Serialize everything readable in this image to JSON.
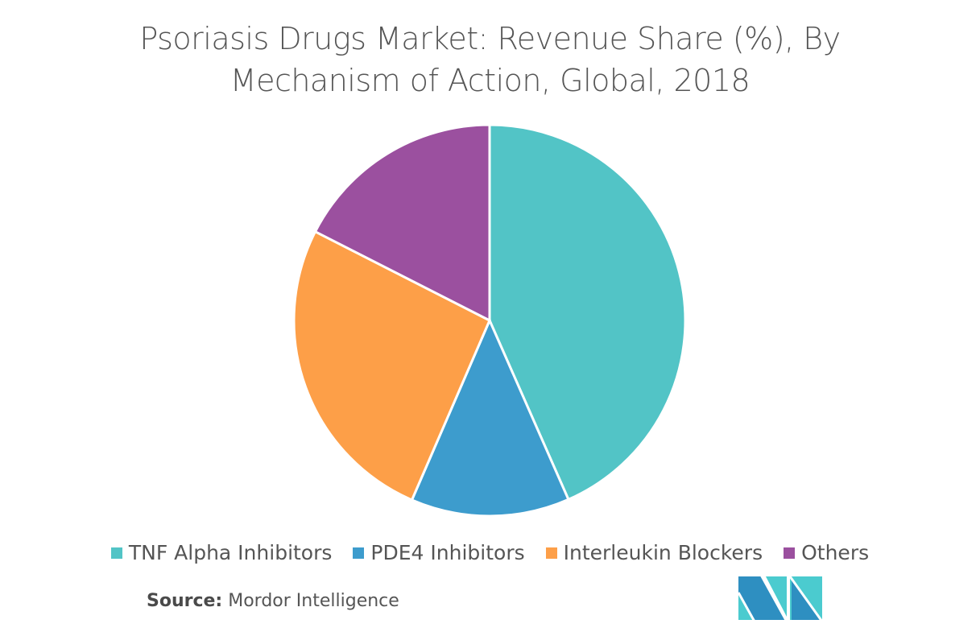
{
  "chart_data": {
    "type": "pie",
    "title": "Psoriasis Drugs Market: Revenue Share (%), By Mechanism of Action, Global, 2018",
    "title_lines": [
      "Psoriasis Drugs Market: Revenue Share (%), By",
      "Mechanism of Action, Global, 2018"
    ],
    "categories": [
      "TNF Alpha Inhibitors",
      "PDE4 Inhibitors",
      "Interleukin Blockers",
      "Others"
    ],
    "values": [
      43.4,
      13.1,
      26.0,
      17.5
    ],
    "colors": [
      "#52c4c6",
      "#3d9ccd",
      "#fd9f48",
      "#9b509f"
    ],
    "start_angle_deg": 0,
    "direction": "clockwise",
    "legend_position": "bottom",
    "data_labels": false
  },
  "legend": {
    "items": [
      {
        "label": "TNF Alpha Inhibitors",
        "color": "#52c4c6"
      },
      {
        "label": "PDE4 Inhibitors",
        "color": "#3d9ccd"
      },
      {
        "label": "Interleukin Blockers",
        "color": "#fd9f48"
      },
      {
        "label": "Others",
        "color": "#9b509f"
      }
    ]
  },
  "source": {
    "label": "Source:",
    "value": "Mordor Intelligence"
  },
  "logo": {
    "name": "mordor-intelligence-logo",
    "colors": [
      "#2e8fc1",
      "#4bcbcf"
    ]
  }
}
